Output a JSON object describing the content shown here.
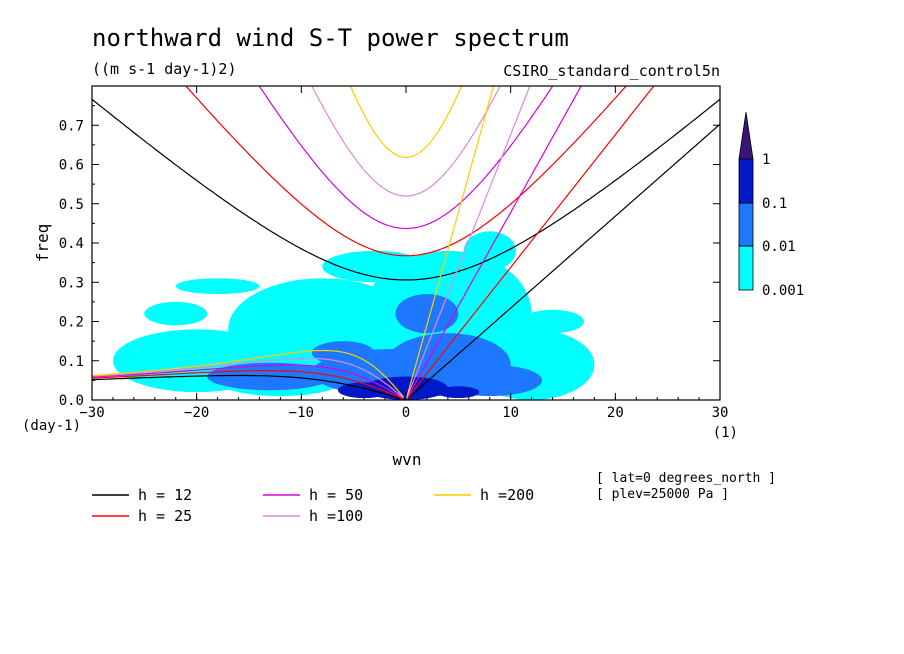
{
  "chart_data": {
    "type": "contour",
    "title": "northward wind S-T power spectrum",
    "subtitle": "((m s-1 day-1)2)",
    "source_label": "CSIRO_standard_control5n",
    "xlabel": "wvn",
    "ylabel": "freq",
    "x_unit": "(1)",
    "y_unit": "(day-1)",
    "xlim": [
      -30,
      30
    ],
    "ylim": [
      0,
      0.8
    ],
    "x_ticks": [
      -30,
      -20,
      -10,
      0,
      10,
      20,
      30
    ],
    "y_ticks": [
      0.0,
      0.1,
      0.2,
      0.3,
      0.4,
      0.5,
      0.6,
      0.7
    ],
    "contour_levels": [
      "0.001",
      "0.01",
      "0.1",
      "1"
    ],
    "level_colors": [
      "#00ffff",
      "#1e78ff",
      "#0018c8",
      "#3c1478"
    ],
    "filled_regions": [
      {
        "level": "0.001",
        "blobs": [
          [
            -20,
            0.1,
            8,
            0.08
          ],
          [
            -8,
            0.18,
            9,
            0.13
          ],
          [
            4,
            0.22,
            8,
            0.16
          ],
          [
            12,
            0.09,
            6,
            0.09
          ],
          [
            -22,
            0.22,
            3,
            0.03
          ],
          [
            -3,
            0.34,
            5,
            0.04
          ],
          [
            8,
            0.38,
            2.5,
            0.05
          ],
          [
            -18,
            0.29,
            4,
            0.02
          ],
          [
            14,
            0.2,
            3,
            0.03
          ],
          [
            -12,
            0.05,
            6,
            0.04
          ]
        ]
      },
      {
        "level": "0.01",
        "blobs": [
          [
            -1,
            0.07,
            8,
            0.06
          ],
          [
            4,
            0.09,
            6,
            0.08
          ],
          [
            -13,
            0.06,
            6,
            0.035
          ],
          [
            2,
            0.22,
            3,
            0.05
          ],
          [
            8,
            0.05,
            5,
            0.04
          ],
          [
            -6,
            0.12,
            3,
            0.03
          ]
        ]
      },
      {
        "level": "0.1",
        "blobs": [
          [
            0,
            0.03,
            4,
            0.03
          ],
          [
            -4,
            0.025,
            2.5,
            0.02
          ],
          [
            5,
            0.02,
            2,
            0.015
          ]
        ]
      }
    ],
    "dispersion_curves": [
      {
        "h": "12",
        "color": "#000000"
      },
      {
        "h": "25",
        "color": "#ff0000"
      },
      {
        "h": "50",
        "color": "#dd00dd"
      },
      {
        "h": "100",
        "color": "#dd88dd"
      },
      {
        "h": "200",
        "color": "#ffcc00"
      }
    ],
    "legend": [
      {
        "label": "h = 12",
        "color": "#000000"
      },
      {
        "label": "h = 25",
        "color": "#ff0000"
      },
      {
        "label": "h = 50",
        "color": "#dd00dd"
      },
      {
        "label": "h =100",
        "color": "#dd88dd"
      },
      {
        "label": "h =200",
        "color": "#ffcc00"
      }
    ],
    "notes": [
      "[ lat=0 degrees_north ]",
      "[ plev=25000 Pa ]"
    ]
  }
}
